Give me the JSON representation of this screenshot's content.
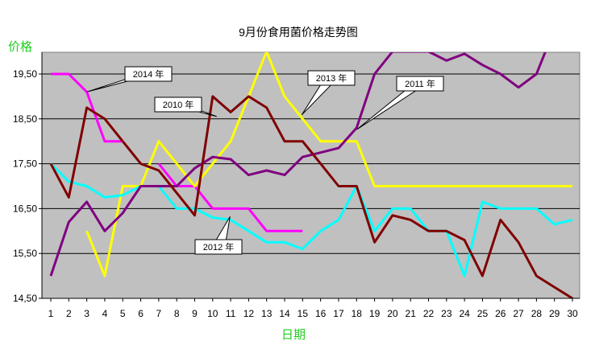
{
  "chart_data": {
    "type": "line",
    "title": "9月份食用菌价格走势图",
    "ylabel": "价格",
    "xlabel": "日期",
    "ylim": [
      14.5,
      19.5
    ],
    "yticks": [
      "14,50",
      "15,50",
      "16,50",
      "17,50",
      "18,50",
      "19,50"
    ],
    "x": [
      "1",
      "2",
      "3",
      "4",
      "5",
      "6",
      "7",
      "8",
      "9",
      "10",
      "11",
      "12",
      "13",
      "14",
      "15",
      "16",
      "17",
      "18",
      "19",
      "20",
      "21",
      "22",
      "23",
      "24",
      "25",
      "26",
      "27",
      "28",
      "29",
      "30"
    ],
    "grid": "horizontal",
    "background": "#c0c0c0",
    "series": [
      {
        "name": "2014 年",
        "color": "#ff00ff",
        "values": [
          19.5,
          19.5,
          19.1,
          18.0,
          18.0,
          null,
          17.5,
          17.0,
          17.0,
          16.5,
          16.5,
          16.5,
          16.0,
          16.0,
          16.0,
          null,
          null,
          null,
          null,
          null,
          null,
          null,
          null,
          null,
          null,
          null,
          null,
          null,
          null,
          null
        ]
      },
      {
        "name": "2013 年",
        "color": "#ffff00",
        "values": [
          null,
          null,
          16.0,
          15.0,
          17.0,
          17.0,
          18.0,
          17.5,
          17.0,
          17.5,
          18.0,
          19.0,
          20.0,
          19.0,
          18.5,
          18.0,
          18.0,
          18.0,
          17.0,
          17.0,
          17.0,
          17.0,
          17.0,
          17.0,
          17.0,
          17.0,
          17.0,
          17.0,
          17.0,
          17.0
        ]
      },
      {
        "name": "2012 年",
        "color": "#00ffff",
        "values": [
          17.5,
          17.1,
          17.0,
          16.75,
          16.8,
          17.0,
          17.0,
          16.5,
          16.5,
          16.3,
          16.25,
          16.0,
          15.75,
          15.75,
          15.6,
          16.0,
          16.25,
          17.0,
          16.0,
          16.5,
          16.5,
          16.0,
          16.0,
          15.0,
          16.65,
          16.5,
          16.5,
          16.5,
          16.15,
          16.25
        ]
      },
      {
        "name": "2011 年",
        "color": "#800080",
        "values": [
          15.0,
          16.2,
          16.65,
          16.0,
          16.4,
          17.0,
          17.0,
          17.0,
          17.4,
          17.65,
          17.6,
          17.25,
          17.35,
          17.25,
          17.65,
          17.75,
          17.85,
          18.3,
          19.5,
          20.0,
          20.0,
          20.0,
          19.8,
          19.95,
          19.7,
          19.5,
          19.2,
          19.5,
          20.5,
          null
        ]
      },
      {
        "name": "2010 年",
        "color": "#800000",
        "values": [
          17.5,
          16.75,
          18.75,
          18.5,
          18.0,
          17.5,
          17.35,
          16.85,
          16.35,
          19.0,
          18.65,
          19.0,
          18.75,
          18.0,
          18.0,
          17.5,
          17.0,
          17.0,
          15.75,
          16.35,
          16.25,
          16.0,
          16.0,
          15.8,
          15.0,
          16.25,
          15.75,
          15.0,
          14.75,
          14.5
        ]
      }
    ],
    "callouts": [
      {
        "series": "2014 年",
        "text": "2014 年"
      },
      {
        "series": "2013 年",
        "text": "2013 年"
      },
      {
        "series": "2011 年",
        "text": "2011 年"
      },
      {
        "series": "2010 年",
        "text": "2010 年"
      },
      {
        "series": "2012 年",
        "text": "2012 年"
      }
    ]
  }
}
